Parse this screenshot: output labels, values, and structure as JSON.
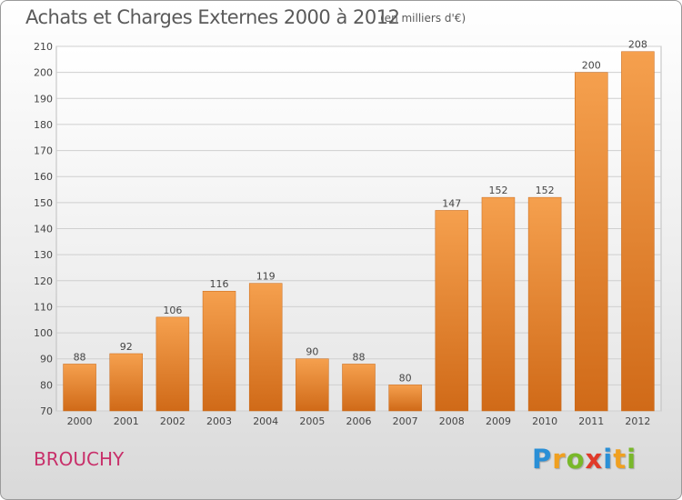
{
  "header": {
    "title": "Achats et Charges Externes 2000 à 2012",
    "subtitle": "(en milliers d'€)"
  },
  "footer": {
    "commune": "BROUCHY",
    "logo_letters": [
      {
        "ch": "P",
        "color": "#2a8fd6"
      },
      {
        "ch": "r",
        "color": "#f0a020"
      },
      {
        "ch": "o",
        "color": "#79b82a"
      },
      {
        "ch": "x",
        "color": "#e03a2a"
      },
      {
        "ch": "i",
        "color": "#2a8fd6"
      },
      {
        "ch": "t",
        "color": "#f0a020"
      },
      {
        "ch": "i",
        "color": "#79b82a"
      }
    ]
  },
  "chart_data": {
    "type": "bar",
    "categories": [
      "2000",
      "2001",
      "2002",
      "2003",
      "2004",
      "2005",
      "2006",
      "2007",
      "2008",
      "2009",
      "2010",
      "2011",
      "2012"
    ],
    "values": [
      88,
      92,
      106,
      116,
      119,
      90,
      88,
      80,
      147,
      152,
      152,
      200,
      208
    ],
    "title": "Achats et Charges Externes 2000 à 2012",
    "subtitle": "(en milliers d'€)",
    "xlabel": "",
    "ylabel": "",
    "ylim": [
      70,
      210
    ],
    "yticks": [
      70,
      80,
      90,
      100,
      110,
      120,
      130,
      140,
      150,
      160,
      170,
      180,
      190,
      200,
      210
    ],
    "grid": true,
    "bar_color_light": "#f5a04e",
    "bar_color_dark": "#d06a18"
  }
}
